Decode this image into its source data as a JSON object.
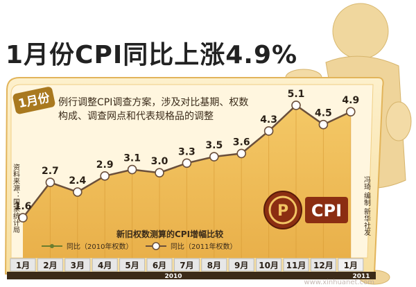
{
  "header": {
    "title": "1月份CPI同比上涨4.9%"
  },
  "badge": {
    "month": "1月份"
  },
  "note": {
    "line1": "例行调整CPI调查方案，涉及对比基期、权数",
    "line2": "构成、调查网点和代表规格品的调整"
  },
  "source": {
    "label": "资料来源：国家统计局"
  },
  "credit": {
    "label": "冯琦 编制 新华社发"
  },
  "logo": {
    "text": "CPI",
    "icon": "cpi-coin-icon"
  },
  "legend": {
    "title": "新旧权数测算的CPI增幅比较",
    "series_old": "同比（2010年权数）",
    "series_new": "同比（2011年权数）"
  },
  "years": {
    "y2010": "2010",
    "y2011": "2011"
  },
  "watermark": "www.xinhuanet.com",
  "colors": {
    "area": "#f2c463",
    "frame": "#fbe7b6",
    "line": "#6a4f3b",
    "accent": "#e25a16"
  },
  "chart_data": {
    "type": "area",
    "categories": [
      "1月",
      "2月",
      "3月",
      "4月",
      "5月",
      "6月",
      "7月",
      "8月",
      "9月",
      "10月",
      "11月",
      "12月",
      "1月"
    ],
    "series": [
      {
        "name": "同比（2011年权数）",
        "values": [
          1.6,
          2.7,
          2.4,
          2.9,
          3.1,
          3.0,
          3.3,
          3.5,
          3.6,
          4.3,
          5.1,
          4.5,
          4.9
        ]
      }
    ],
    "x_groups": [
      {
        "label": "2010",
        "span": [
          0,
          11
        ]
      },
      {
        "label": "2011",
        "span": [
          12,
          12
        ]
      }
    ],
    "grid": false,
    "legend": "bottom"
  }
}
